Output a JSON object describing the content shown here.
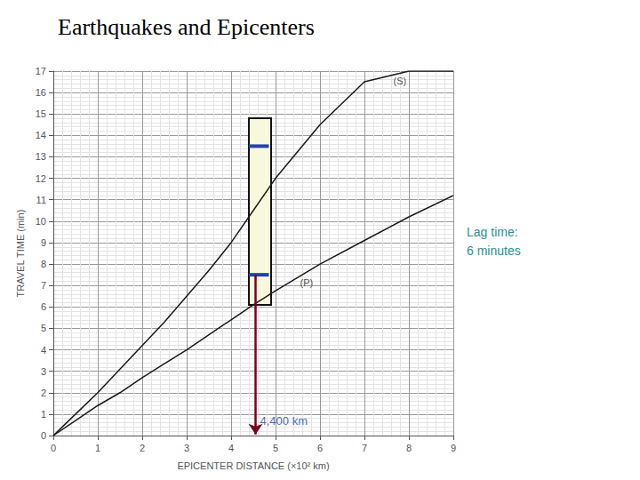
{
  "chart_data": {
    "type": "line",
    "title": "Earthquakes and Epicenters",
    "xlabel": "EPICENTER DISTANCE (×10² km)",
    "ylabel": "TRAVEL TIME (min)",
    "xlim": [
      0,
      9
    ],
    "ylim": [
      0,
      17
    ],
    "xticks": [
      0,
      1,
      2,
      3,
      4,
      5,
      6,
      7,
      8,
      9
    ],
    "yticks": [
      0,
      1,
      2,
      3,
      4,
      5,
      6,
      7,
      8,
      9,
      10,
      11,
      12,
      13,
      14,
      15,
      16,
      17
    ],
    "grid": true,
    "x": [
      0,
      0.5,
      1,
      1.5,
      2,
      2.5,
      3,
      3.5,
      4,
      4.5,
      5,
      6,
      7,
      8,
      9
    ],
    "series": [
      {
        "color": "#1a1a1a",
        "values": [
          0,
          1.0,
          2.0,
          3.1,
          4.2,
          5.3,
          6.5,
          7.7,
          9.0,
          10.5,
          12.0,
          14.5,
          16.5,
          17.0,
          17.0
        ]
      },
      {
        "color": "#1a1a1a",
        "values": [
          0,
          0.7,
          1.4,
          2.0,
          2.7,
          3.35,
          4.0,
          4.7,
          5.4,
          6.1,
          6.75,
          8.0,
          9.1,
          10.2,
          11.2
        ]
      }
    ],
    "highlight": {
      "x": 4.4,
      "width": 0.5,
      "y": [
        6.1,
        14.8
      ],
      "color": "#f8f8dc",
      "edge_color": "#111111"
    },
    "markers": [
      {
        "y": 13.5,
        "x": [
          4.4,
          4.85
        ],
        "color": "#2244aa"
      },
      {
        "y": 7.5,
        "x": [
          4.4,
          4.85
        ],
        "color": "#2244aa"
      }
    ],
    "arrow": {
      "x": 4.55,
      "y": [
        7.5,
        0.05
      ],
      "color": "#7a0020"
    },
    "annotations": [
      {
        "text": "(S)",
        "x": 7.65,
        "y": 16.3,
        "color": "#1a1a1a"
      },
      {
        "text": "(P)",
        "x": 5.55,
        "y": 6.9,
        "color": "#1a1a1a"
      },
      {
        "text": "4,400 km",
        "x": 4.65,
        "y": 0.4,
        "color": "#2244aa"
      },
      {
        "text": "Lag time:\n6 minutes",
        "color": "#2a9090"
      }
    ]
  }
}
